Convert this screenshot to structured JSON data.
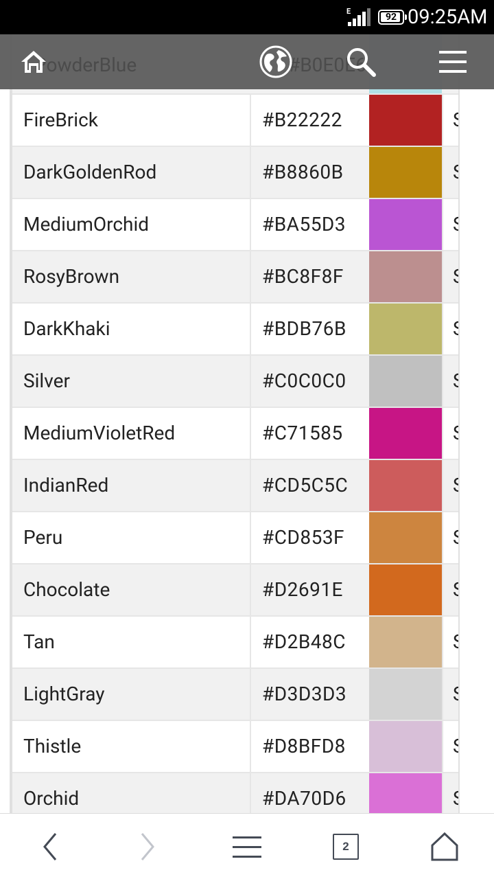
{
  "status_bar": {
    "network_type": "E",
    "battery_level": "92",
    "battery_fraction": 0.92,
    "time": "09:25AM"
  },
  "toolbar": {
    "behind_text_name": "PowderBlue",
    "behind_text_hex": "#B0E0E6",
    "icons": [
      "home-icon",
      "globe-icon",
      "search-icon",
      "menu-icon"
    ]
  },
  "table": {
    "partial_top_swatch": "#B0E0E6",
    "rows": [
      {
        "name": "FireBrick",
        "hex": "#B22222",
        "color": "#B22222",
        "extra": "S"
      },
      {
        "name": "DarkGoldenRod",
        "hex": "#B8860B",
        "color": "#B8860B",
        "extra": "S"
      },
      {
        "name": "MediumOrchid",
        "hex": "#BA55D3",
        "color": "#BA55D3",
        "extra": "S"
      },
      {
        "name": "RosyBrown",
        "hex": "#BC8F8F",
        "color": "#BC8F8F",
        "extra": "S"
      },
      {
        "name": "DarkKhaki",
        "hex": "#BDB76B",
        "color": "#BDB76B",
        "extra": "S"
      },
      {
        "name": "Silver",
        "hex": "#C0C0C0",
        "color": "#C0C0C0",
        "extra": "S"
      },
      {
        "name": "MediumVioletRed",
        "hex": "#C71585",
        "color": "#C71585",
        "extra": "S"
      },
      {
        "name": "IndianRed",
        "hex": "#CD5C5C",
        "color": "#CD5C5C",
        "extra": "S"
      },
      {
        "name": "Peru",
        "hex": "#CD853F",
        "color": "#CD853F",
        "extra": "S"
      },
      {
        "name": "Chocolate",
        "hex": "#D2691E",
        "color": "#D2691E",
        "extra": "S"
      },
      {
        "name": "Tan",
        "hex": "#D2B48C",
        "color": "#D2B48C",
        "extra": "S"
      },
      {
        "name": "LightGray",
        "hex": "#D3D3D3",
        "color": "#D3D3D3",
        "extra": "S"
      },
      {
        "name": "Thistle",
        "hex": "#D8BFD8",
        "color": "#D8BFD8",
        "extra": "S"
      },
      {
        "name": "Orchid",
        "hex": "#DA70D6",
        "color": "#DA70D6",
        "extra": "S"
      }
    ]
  },
  "bottom_nav": {
    "tab_count": "2",
    "icons": [
      "back-icon",
      "forward-icon",
      "menu-icon",
      "tabs-icon",
      "home-icon"
    ]
  }
}
